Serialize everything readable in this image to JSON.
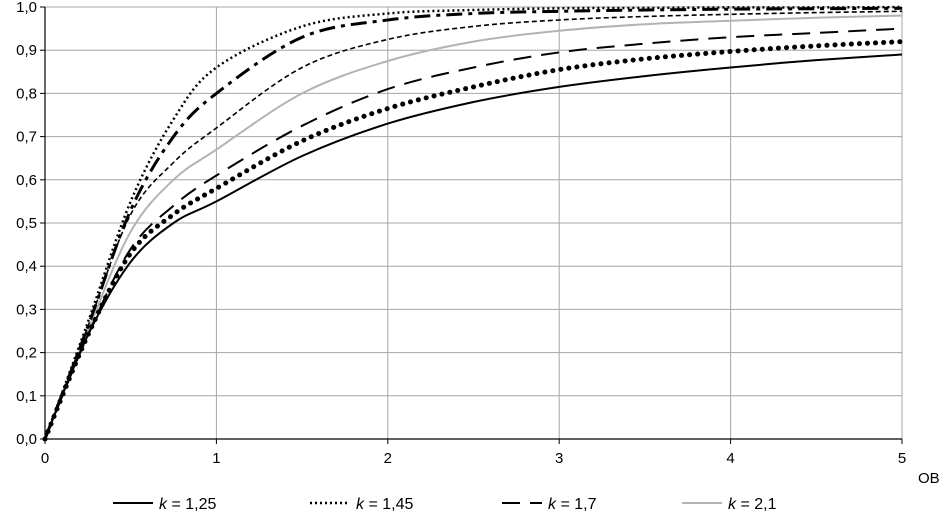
{
  "chart_data": {
    "type": "line",
    "title": "",
    "xlabel": "OB",
    "ylabel": "",
    "xlim": [
      0,
      5
    ],
    "ylim": [
      0,
      1
    ],
    "x_ticks": [
      "0",
      "1",
      "2",
      "3",
      "4",
      "5"
    ],
    "y_ticks": [
      "0,0",
      "0,1",
      "0,2",
      "0,3",
      "0,4",
      "0,5",
      "0,6",
      "0,7",
      "0,8",
      "0,9",
      "1,0"
    ],
    "grid": true,
    "legend_position": "bottom",
    "legend_prefix": "k",
    "legend_sep": " = ",
    "x": [
      0,
      0.25,
      0.5,
      0.75,
      1,
      1.5,
      2,
      2.5,
      3,
      3.5,
      4,
      4.5,
      5
    ],
    "series": [
      {
        "name": "1,25",
        "style": "solid",
        "color": "#000000",
        "in_legend": true,
        "values": [
          0,
          0.24,
          0.41,
          0.5,
          0.55,
          0.655,
          0.73,
          0.78,
          0.815,
          0.84,
          0.86,
          0.877,
          0.89
        ]
      },
      {
        "name": "1,45",
        "style": "dotted-fine",
        "color": "#000000",
        "in_legend": true,
        "values": [
          0,
          0.27,
          0.55,
          0.74,
          0.86,
          0.955,
          0.985,
          0.993,
          0.997,
          0.998,
          0.999,
          0.999,
          1.0
        ]
      },
      {
        "name": "1,7",
        "style": "long-dash",
        "color": "#000000",
        "in_legend": true,
        "values": [
          0,
          0.24,
          0.44,
          0.54,
          0.61,
          0.725,
          0.81,
          0.86,
          0.895,
          0.915,
          0.93,
          0.94,
          0.95
        ]
      },
      {
        "name": "2,1",
        "style": "solid",
        "color": "#b3b3b3",
        "in_legend": true,
        "values": [
          0,
          0.25,
          0.48,
          0.6,
          0.67,
          0.8,
          0.875,
          0.92,
          0.945,
          0.96,
          0.968,
          0.975,
          0.98
        ]
      },
      {
        "name": "",
        "style": "round-dots",
        "color": "#000000",
        "in_legend": false,
        "values": [
          0,
          0.24,
          0.43,
          0.52,
          0.58,
          0.69,
          0.765,
          0.815,
          0.855,
          0.88,
          0.897,
          0.91,
          0.92
        ]
      },
      {
        "name": "",
        "style": "short-dash",
        "color": "#000000",
        "in_legend": false,
        "values": [
          0,
          0.26,
          0.52,
          0.64,
          0.72,
          0.86,
          0.925,
          0.955,
          0.97,
          0.978,
          0.983,
          0.987,
          0.99
        ]
      },
      {
        "name": "",
        "style": "dash-dot",
        "color": "#000000",
        "in_legend": false,
        "values": [
          0,
          0.26,
          0.53,
          0.7,
          0.8,
          0.93,
          0.97,
          0.985,
          0.99,
          0.993,
          0.995,
          0.996,
          0.997
        ]
      }
    ]
  }
}
